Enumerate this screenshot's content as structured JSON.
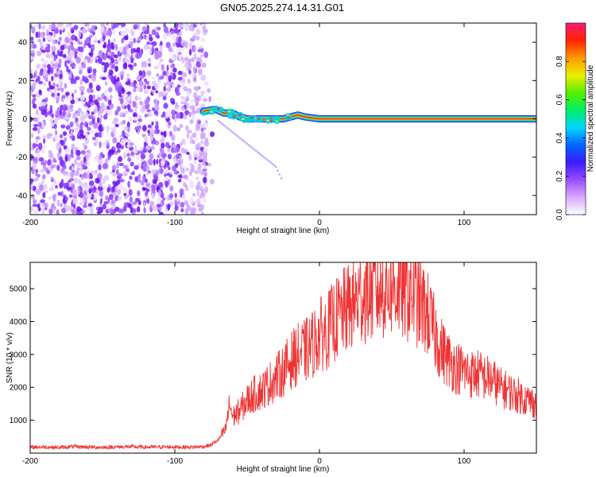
{
  "title": "GN05.2025.274.14.31.G01",
  "colors": {
    "spectrogram_scatter": "#7b1fff",
    "snr_line": "#ee3333",
    "axis": "#000000"
  },
  "chart_data": [
    {
      "type": "heatmap",
      "name": "spectrogram",
      "xlabel": "Height of straight line (km)",
      "ylabel": "Frequency (Hz)",
      "xlim": [
        -200,
        150
      ],
      "ylim": [
        -50,
        50
      ],
      "xticks": [
        -200,
        -100,
        0,
        100
      ],
      "xtick_labels": [
        "-200",
        "-100",
        "0",
        "100"
      ],
      "yticks": [
        -40,
        -20,
        0,
        20,
        40
      ],
      "ytick_labels": [
        "-40",
        "-20",
        "0",
        "20",
        "40"
      ],
      "noise_region_x": [
        -200,
        -78
      ],
      "signal_track": {
        "x": [
          -80,
          -72,
          -66,
          -60,
          -55,
          -50,
          -45,
          -40,
          -35,
          -30,
          -25,
          -20,
          -15,
          -10,
          0,
          150
        ],
        "y": [
          4,
          5,
          3,
          3,
          1,
          0,
          0,
          0,
          0,
          0,
          0,
          1,
          2,
          1,
          0,
          0
        ]
      },
      "echo_trail": {
        "x": [
          -70,
          -65,
          -60,
          -55,
          -50,
          -45,
          -40,
          -35,
          -30,
          -25
        ],
        "y": [
          -1,
          -4,
          -7,
          -10,
          -13,
          -16,
          -19,
          -22,
          -25,
          -33
        ]
      },
      "colorbar": {
        "label": "Normalized spectral amplitude",
        "range": [
          0,
          1
        ],
        "ticks": [
          "0.0",
          "0.2",
          "0.4",
          "0.6",
          "0.8"
        ],
        "tick_values": [
          0,
          0.2,
          0.4,
          0.6,
          0.8
        ],
        "stops": [
          "#ffffff",
          "#d8a8ff",
          "#9a4dff",
          "#3d1bff",
          "#0066ff",
          "#00d8ff",
          "#00ee66",
          "#55ee00",
          "#eeee00",
          "#ff9900",
          "#ff2200",
          "#ff1a77"
        ]
      }
    },
    {
      "type": "line",
      "name": "snr",
      "xlabel": "Height of straight line (km)",
      "ylabel": "SNR (10 * v/v)",
      "xlim": [
        -200,
        150
      ],
      "ylim": [
        0,
        5800
      ],
      "xticks": [
        -200,
        -100,
        0,
        100
      ],
      "xtick_labels": [
        "-200",
        "-100",
        "0",
        "100"
      ],
      "yticks": [
        1000,
        2000,
        3000,
        4000,
        5000
      ],
      "ytick_labels": [
        "1000",
        "2000",
        "3000",
        "4000",
        "5000"
      ],
      "series": [
        {
          "x": [
            -200,
            -190,
            -180,
            -170,
            -160,
            -150,
            -140,
            -130,
            -120,
            -110,
            -100,
            -90,
            -80,
            -75,
            -70,
            -65,
            -62,
            -60,
            -55,
            -50,
            -45,
            -40,
            -35,
            -30,
            -25,
            -20,
            -15,
            -10,
            -5,
            0,
            5,
            10,
            15,
            20,
            25,
            30,
            35,
            40,
            45,
            50,
            55,
            60,
            65,
            70,
            75,
            80,
            85,
            90,
            95,
            100,
            105,
            110,
            115,
            120,
            125,
            130,
            135,
            140,
            145,
            150
          ],
          "y": [
            180,
            190,
            170,
            200,
            185,
            175,
            190,
            195,
            180,
            185,
            190,
            180,
            200,
            250,
            400,
            700,
            1500,
            1100,
            1300,
            1600,
            1800,
            1900,
            2100,
            2300,
            2500,
            2800,
            3000,
            3100,
            3300,
            3600,
            3700,
            4000,
            4200,
            4400,
            4600,
            4800,
            4900,
            4950,
            5000,
            5100,
            5000,
            4900,
            4800,
            4500,
            4200,
            3600,
            3100,
            2800,
            2600,
            2500,
            2400,
            2400,
            2300,
            2200,
            2000,
            1900,
            1800,
            1700,
            1600,
            1500
          ]
        }
      ]
    }
  ]
}
